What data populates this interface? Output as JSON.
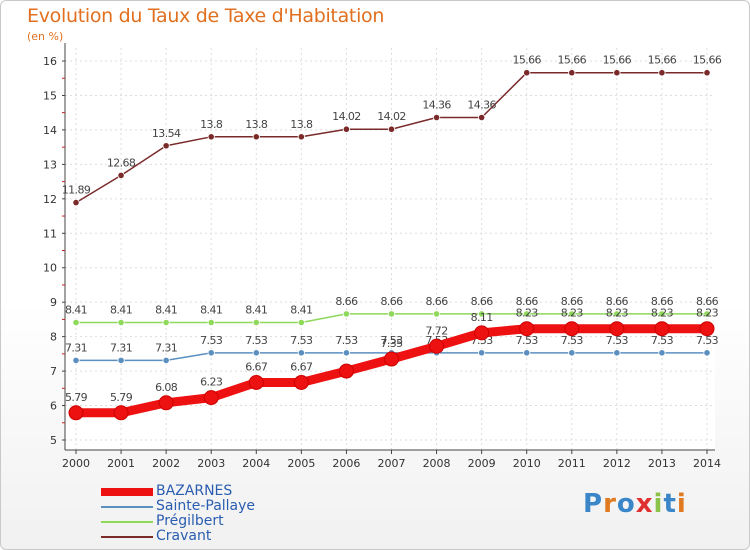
{
  "header": {
    "title": "Evolution du Taux de Taxe d'Habitation",
    "unit": "(en %)"
  },
  "logo": {
    "text": "Proxiti"
  },
  "chart_data": {
    "type": "line",
    "title": "Evolution du Taux de Taxe d'Habitation",
    "ylabel": "(en %)",
    "xlabel": "",
    "x": [
      "2000",
      "2001",
      "2002",
      "2003",
      "2004",
      "2005",
      "2006",
      "2007",
      "2008",
      "2009",
      "2010",
      "2011",
      "2012",
      "2013",
      "2014"
    ],
    "ylim": [
      5,
      16
    ],
    "yticks": [
      "5",
      "6",
      "7",
      "8",
      "9",
      "10",
      "11",
      "12",
      "13",
      "14",
      "15",
      "16"
    ],
    "legend_position": "bottom-left",
    "series": [
      {
        "name": "Cravant",
        "color": "#7b2a2a",
        "values": [
          11.89,
          12.68,
          13.54,
          13.8,
          13.8,
          13.8,
          14.02,
          14.02,
          14.36,
          14.36,
          15.66,
          15.66,
          15.66,
          15.66,
          15.66
        ],
        "labels": [
          "11.89",
          "12.68",
          "13.54",
          "13.8",
          "13.8",
          "13.8",
          "14.02",
          "14.02",
          "14.36",
          "14.36",
          "15.66",
          "15.66",
          "15.66",
          "15.66",
          "15.66"
        ]
      },
      {
        "name": "Prégilbert",
        "color": "#8ed85a",
        "values": [
          8.41,
          8.41,
          8.41,
          8.41,
          8.41,
          8.41,
          8.66,
          8.66,
          8.66,
          8.66,
          8.66,
          8.66,
          8.66,
          8.66,
          8.66
        ],
        "labels": [
          "8.41",
          "8.41",
          "8.41",
          "8.41",
          "8.41",
          "8.41",
          "8.66",
          "8.66",
          "8.66",
          "8.66",
          "8.66",
          "8.66",
          "8.66",
          "8.66",
          "8.66"
        ]
      },
      {
        "name": "Sainte-Pallaye",
        "color": "#5b8fc0",
        "values": [
          7.31,
          7.31,
          7.31,
          7.53,
          7.53,
          7.53,
          7.53,
          7.53,
          7.53,
          7.53,
          7.53,
          7.53,
          7.53,
          7.53,
          7.53
        ],
        "labels": [
          "7.31",
          "7.31",
          "7.31",
          "7.53",
          "7.53",
          "7.53",
          "7.53",
          "7.53",
          "7.53",
          "7.53",
          "7.53",
          "7.53",
          "7.53",
          "7.53",
          "7.53"
        ]
      },
      {
        "name": "BAZARNES",
        "color": "#ee1111",
        "values": [
          5.79,
          5.79,
          6.08,
          6.23,
          6.67,
          6.67,
          7.0,
          7.35,
          7.72,
          8.11,
          8.23,
          8.23,
          8.23,
          8.23,
          8.23
        ],
        "labels": [
          "5.79",
          "5.79",
          "6.08",
          "6.23",
          "6.67",
          "6.67",
          "",
          "7.35",
          "7.72",
          "8.11",
          "8.23",
          "8.23",
          "8.23",
          "8.23",
          "8.23"
        ]
      }
    ]
  }
}
